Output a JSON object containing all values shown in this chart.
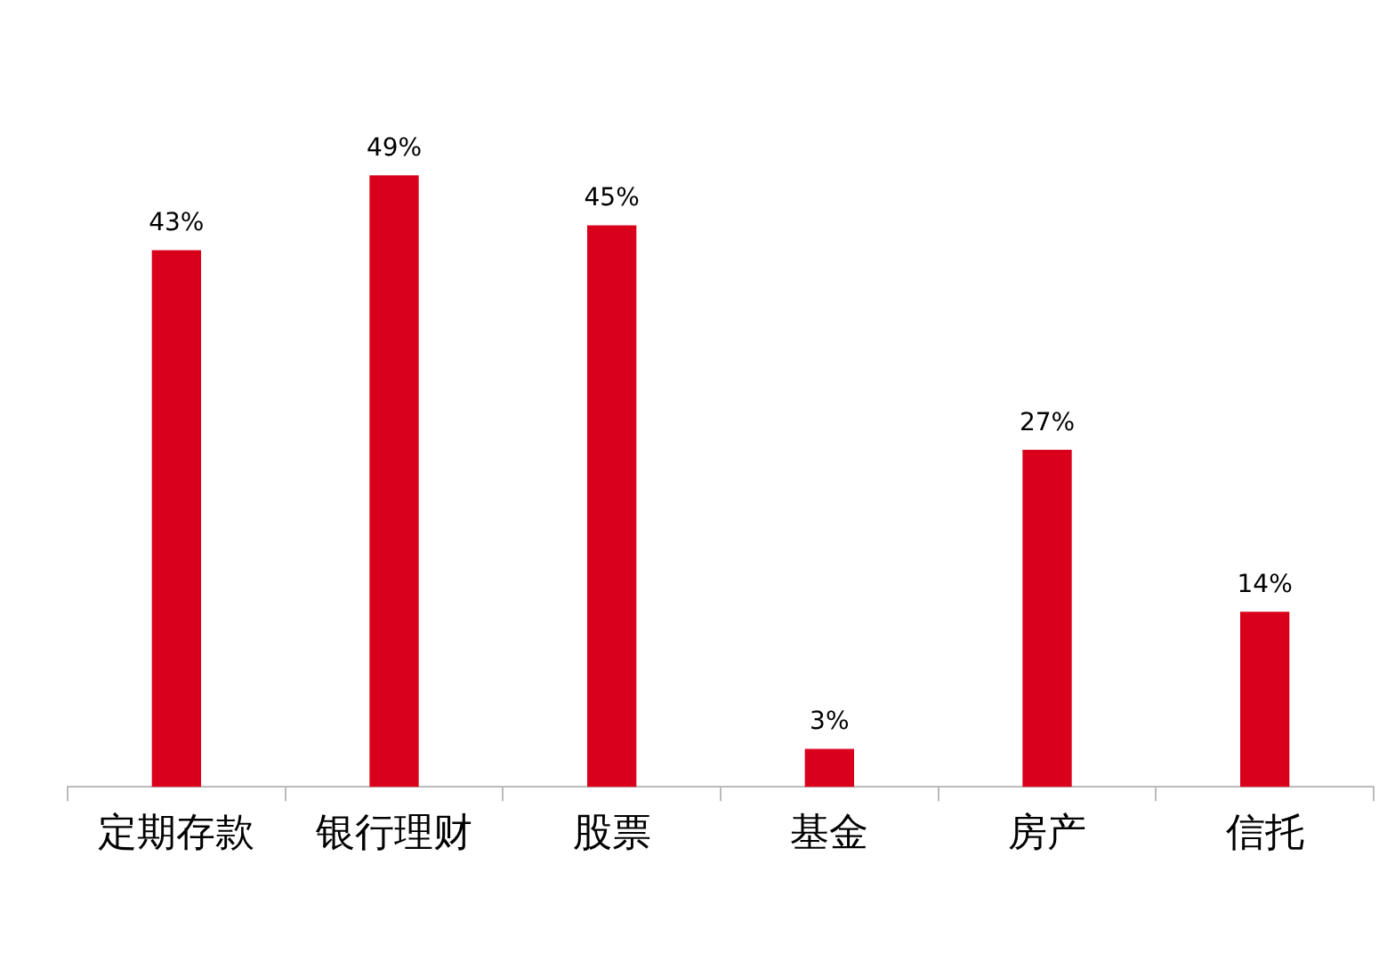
{
  "chart_data": {
    "type": "bar",
    "categories": [
      "定期存款",
      "银行理财",
      "股票",
      "基金",
      "房产",
      "信托"
    ],
    "values": [
      43,
      49,
      45,
      3,
      27,
      14
    ],
    "value_labels": [
      "43%",
      "49%",
      "45%",
      "3%",
      "27%",
      "14%"
    ],
    "color": "#d9001b",
    "grid": false,
    "legend": false
  }
}
